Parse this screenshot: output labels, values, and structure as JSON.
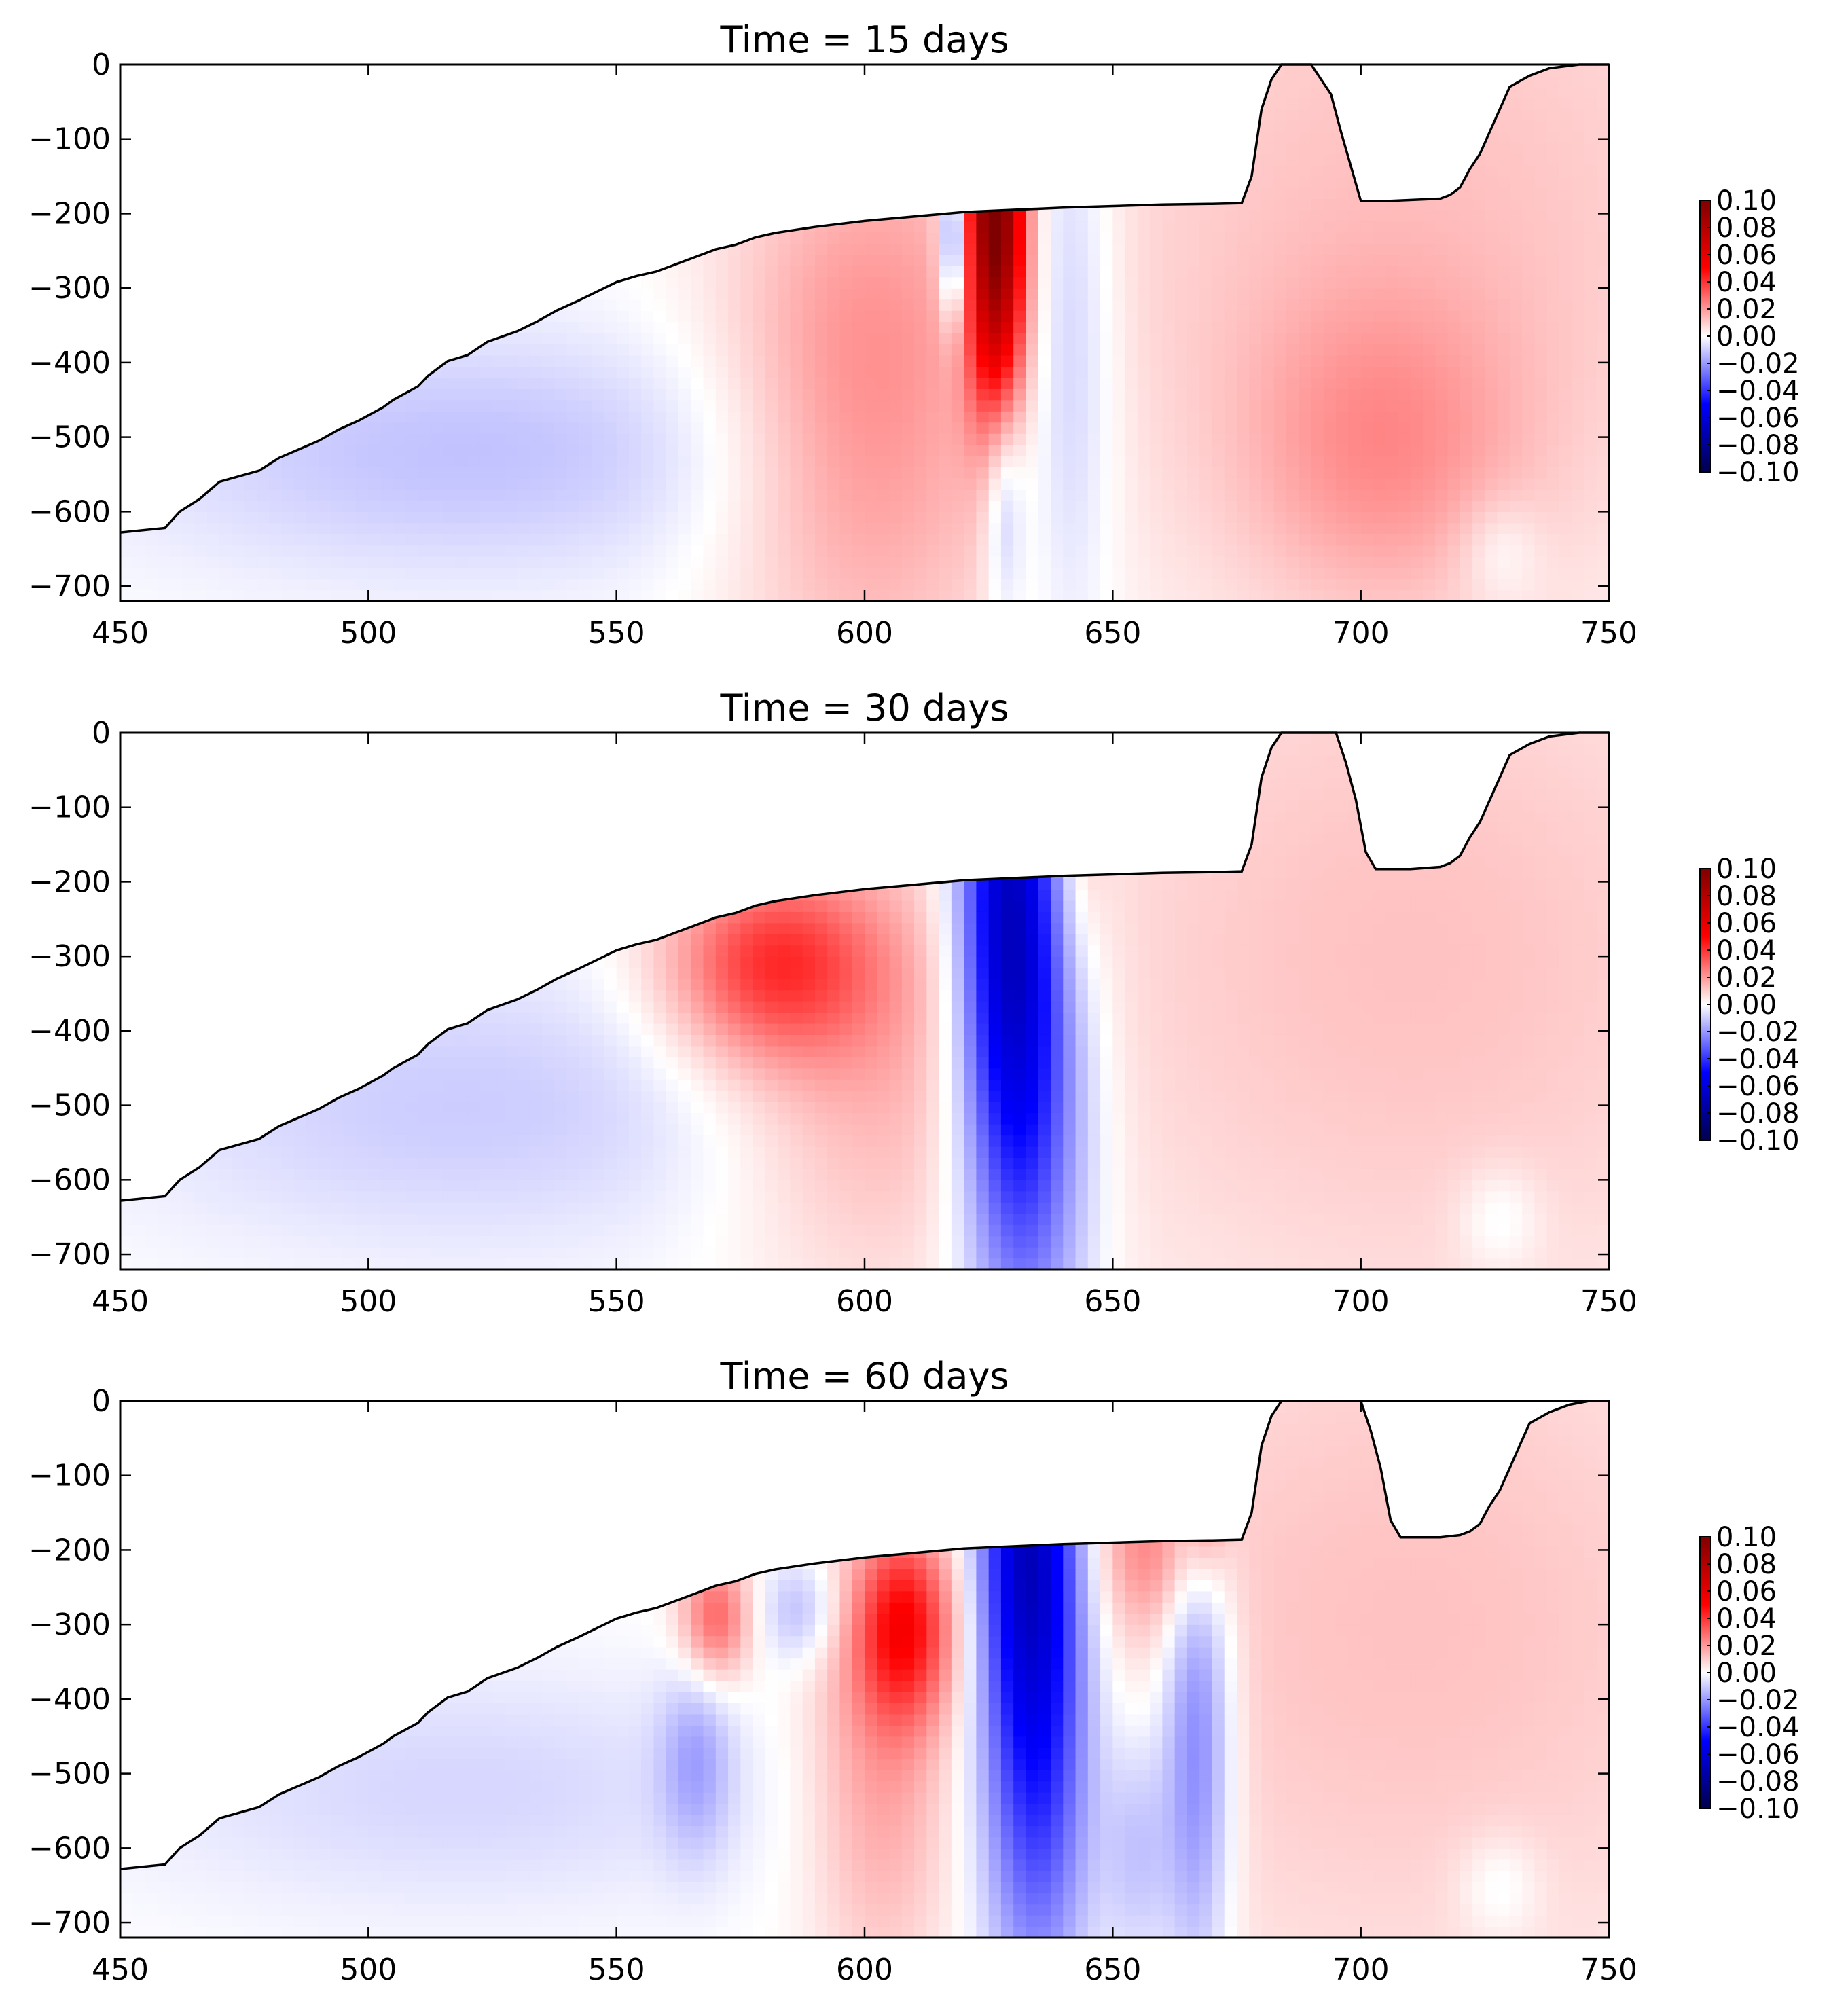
{
  "chart_data": [
    {
      "type": "heatmap",
      "title": "Time = 15 days",
      "xlabel": "",
      "ylabel": "",
      "xlim": [
        450,
        750
      ],
      "ylim": [
        -720,
        0
      ],
      "x_ticks": [
        "450",
        "500",
        "550",
        "600",
        "650",
        "700",
        "750"
      ],
      "y_ticks": [
        "0",
        "−100",
        "−200",
        "−300",
        "−400",
        "−500",
        "−600",
        "−700"
      ],
      "colorbar": {
        "colormap": "seismic",
        "range": [
          -0.1,
          0.1
        ],
        "ticks": [
          "0.10",
          "0.08",
          "0.06",
          "0.04",
          "0.02",
          "0.00",
          "−0.02",
          "−0.04",
          "−0.06",
          "−0.08",
          "−0.10"
        ]
      },
      "boundary": [
        [
          450,
          -628
        ],
        [
          459,
          -622
        ],
        [
          462,
          -600
        ],
        [
          466,
          -583
        ],
        [
          470,
          -560
        ],
        [
          478,
          -545
        ],
        [
          482,
          -528
        ],
        [
          490,
          -505
        ],
        [
          494,
          -490
        ],
        [
          498,
          -478
        ],
        [
          503,
          -460
        ],
        [
          505,
          -450
        ],
        [
          510,
          -432
        ],
        [
          512,
          -418
        ],
        [
          516,
          -398
        ],
        [
          520,
          -390
        ],
        [
          524,
          -372
        ],
        [
          530,
          -358
        ],
        [
          534,
          -345
        ],
        [
          538,
          -330
        ],
        [
          542,
          -318
        ],
        [
          546,
          -305
        ],
        [
          550,
          -292
        ],
        [
          554,
          -284
        ],
        [
          558,
          -278
        ],
        [
          562,
          -268
        ],
        [
          566,
          -258
        ],
        [
          570,
          -248
        ],
        [
          574,
          -242
        ],
        [
          578,
          -232
        ],
        [
          582,
          -226
        ],
        [
          590,
          -218
        ],
        [
          600,
          -210
        ],
        [
          620,
          -198
        ],
        [
          640,
          -192
        ],
        [
          660,
          -188
        ],
        [
          670,
          -187
        ],
        [
          676,
          -186
        ],
        [
          678,
          -150
        ],
        [
          680,
          -60
        ],
        [
          682,
          -20
        ],
        [
          684,
          0
        ],
        [
          690,
          0
        ],
        [
          694,
          -40
        ],
        [
          696,
          -90
        ],
        [
          700,
          -183
        ],
        [
          706,
          -183
        ],
        [
          716,
          -180
        ],
        [
          718,
          -175
        ],
        [
          720,
          -165
        ],
        [
          722,
          -140
        ],
        [
          724,
          -120
        ],
        [
          728,
          -60
        ],
        [
          730,
          -30
        ],
        [
          734,
          -15
        ],
        [
          738,
          -5
        ],
        [
          744,
          0
        ],
        [
          750,
          0
        ]
      ],
      "blobs": [
        {
          "x": 626,
          "y": -60,
          "sx": 4,
          "sy": 180,
          "v": 0.08
        },
        {
          "x": 627,
          "y": -300,
          "sx": 4,
          "sy": 150,
          "v": 0.05
        },
        {
          "x": 628,
          "y": -560,
          "sx": 3,
          "sy": 120,
          "v": -0.02
        },
        {
          "x": 618,
          "y": -230,
          "sx": 2,
          "sy": 80,
          "v": -0.04
        },
        {
          "x": 641,
          "y": -350,
          "sx": 7,
          "sy": 300,
          "v": -0.015
        },
        {
          "x": 600,
          "y": -450,
          "sx": 20,
          "sy": 260,
          "v": 0.022
        },
        {
          "x": 704,
          "y": -520,
          "sx": 20,
          "sy": 150,
          "v": 0.015
        },
        {
          "x": 710,
          "y": -200,
          "sx": 60,
          "sy": 400,
          "v": 0.012
        },
        {
          "x": 520,
          "y": -520,
          "sx": 50,
          "sy": 120,
          "v": -0.012
        },
        {
          "x": 728,
          "y": -650,
          "sx": 6,
          "sy": 50,
          "v": -0.008
        }
      ]
    },
    {
      "type": "heatmap",
      "title": "Time = 30 days",
      "xlabel": "",
      "ylabel": "",
      "xlim": [
        450,
        750
      ],
      "ylim": [
        -720,
        0
      ],
      "x_ticks": [
        "450",
        "500",
        "550",
        "600",
        "650",
        "700",
        "750"
      ],
      "y_ticks": [
        "0",
        "−100",
        "−200",
        "−300",
        "−400",
        "−500",
        "−600",
        "−700"
      ],
      "colorbar": {
        "colormap": "seismic",
        "range": [
          -0.1,
          0.1
        ],
        "ticks": [
          "0.10",
          "0.08",
          "0.06",
          "0.04",
          "0.02",
          "0.00",
          "−0.02",
          "−0.04",
          "−0.06",
          "−0.08",
          "−0.10"
        ]
      },
      "boundary": [
        [
          450,
          -628
        ],
        [
          459,
          -622
        ],
        [
          462,
          -600
        ],
        [
          466,
          -583
        ],
        [
          470,
          -560
        ],
        [
          478,
          -545
        ],
        [
          482,
          -528
        ],
        [
          490,
          -505
        ],
        [
          494,
          -490
        ],
        [
          498,
          -478
        ],
        [
          503,
          -460
        ],
        [
          505,
          -450
        ],
        [
          510,
          -432
        ],
        [
          512,
          -418
        ],
        [
          516,
          -398
        ],
        [
          520,
          -390
        ],
        [
          524,
          -372
        ],
        [
          530,
          -358
        ],
        [
          534,
          -345
        ],
        [
          538,
          -330
        ],
        [
          542,
          -318
        ],
        [
          546,
          -305
        ],
        [
          550,
          -292
        ],
        [
          554,
          -284
        ],
        [
          558,
          -278
        ],
        [
          562,
          -268
        ],
        [
          566,
          -258
        ],
        [
          570,
          -248
        ],
        [
          574,
          -242
        ],
        [
          578,
          -232
        ],
        [
          582,
          -226
        ],
        [
          590,
          -218
        ],
        [
          600,
          -210
        ],
        [
          620,
          -198
        ],
        [
          640,
          -192
        ],
        [
          660,
          -188
        ],
        [
          670,
          -187
        ],
        [
          676,
          -186
        ],
        [
          678,
          -150
        ],
        [
          680,
          -60
        ],
        [
          682,
          -20
        ],
        [
          684,
          0
        ],
        [
          695,
          0
        ],
        [
          697,
          -40
        ],
        [
          699,
          -90
        ],
        [
          701,
          -160
        ],
        [
          703,
          -183
        ],
        [
          710,
          -183
        ],
        [
          716,
          -180
        ],
        [
          718,
          -175
        ],
        [
          720,
          -165
        ],
        [
          722,
          -140
        ],
        [
          724,
          -120
        ],
        [
          728,
          -60
        ],
        [
          730,
          -30
        ],
        [
          734,
          -15
        ],
        [
          738,
          -5
        ],
        [
          744,
          0
        ],
        [
          750,
          0
        ]
      ],
      "blobs": [
        {
          "x": 629,
          "y": -200,
          "sx": 7,
          "sy": 250,
          "v": -0.06
        },
        {
          "x": 633,
          "y": -520,
          "sx": 9,
          "sy": 250,
          "v": -0.035
        },
        {
          "x": 643,
          "y": -150,
          "sx": 4,
          "sy": 120,
          "v": 0.01
        },
        {
          "x": 581,
          "y": -310,
          "sx": 15,
          "sy": 90,
          "v": 0.035
        },
        {
          "x": 600,
          "y": -450,
          "sx": 20,
          "sy": 200,
          "v": 0.015
        },
        {
          "x": 710,
          "y": -300,
          "sx": 60,
          "sy": 400,
          "v": 0.012
        },
        {
          "x": 520,
          "y": -500,
          "sx": 50,
          "sy": 140,
          "v": -0.01
        },
        {
          "x": 728,
          "y": -650,
          "sx": 6,
          "sy": 50,
          "v": -0.008
        }
      ]
    },
    {
      "type": "heatmap",
      "title": "Time = 60 days",
      "xlabel": "",
      "ylabel": "",
      "xlim": [
        450,
        750
      ],
      "ylim": [
        -720,
        0
      ],
      "x_ticks": [
        "450",
        "500",
        "550",
        "600",
        "650",
        "700",
        "750"
      ],
      "y_ticks": [
        "0",
        "−100",
        "−200",
        "−300",
        "−400",
        "−500",
        "−600",
        "−700"
      ],
      "colorbar": {
        "colormap": "seismic",
        "range": [
          -0.1,
          0.1
        ],
        "ticks": [
          "0.10",
          "0.08",
          "0.06",
          "0.04",
          "0.02",
          "0.00",
          "−0.02",
          "−0.04",
          "−0.06",
          "−0.08",
          "−0.10"
        ]
      },
      "boundary": [
        [
          450,
          -628
        ],
        [
          459,
          -622
        ],
        [
          462,
          -600
        ],
        [
          466,
          -583
        ],
        [
          470,
          -560
        ],
        [
          478,
          -545
        ],
        [
          482,
          -528
        ],
        [
          490,
          -505
        ],
        [
          494,
          -490
        ],
        [
          498,
          -478
        ],
        [
          503,
          -460
        ],
        [
          505,
          -450
        ],
        [
          510,
          -432
        ],
        [
          512,
          -418
        ],
        [
          516,
          -398
        ],
        [
          520,
          -390
        ],
        [
          524,
          -372
        ],
        [
          530,
          -358
        ],
        [
          534,
          -345
        ],
        [
          538,
          -330
        ],
        [
          542,
          -318
        ],
        [
          546,
          -305
        ],
        [
          550,
          -292
        ],
        [
          554,
          -284
        ],
        [
          558,
          -278
        ],
        [
          562,
          -268
        ],
        [
          566,
          -258
        ],
        [
          570,
          -248
        ],
        [
          574,
          -242
        ],
        [
          578,
          -232
        ],
        [
          582,
          -226
        ],
        [
          590,
          -218
        ],
        [
          600,
          -210
        ],
        [
          620,
          -198
        ],
        [
          640,
          -192
        ],
        [
          660,
          -188
        ],
        [
          670,
          -187
        ],
        [
          676,
          -186
        ],
        [
          678,
          -150
        ],
        [
          680,
          -60
        ],
        [
          682,
          -20
        ],
        [
          684,
          0
        ],
        [
          700,
          0
        ],
        [
          702,
          -40
        ],
        [
          704,
          -90
        ],
        [
          706,
          -160
        ],
        [
          708,
          -183
        ],
        [
          716,
          -183
        ],
        [
          720,
          -180
        ],
        [
          722,
          -175
        ],
        [
          724,
          -165
        ],
        [
          726,
          -140
        ],
        [
          728,
          -120
        ],
        [
          732,
          -60
        ],
        [
          734,
          -30
        ],
        [
          738,
          -15
        ],
        [
          742,
          -5
        ],
        [
          746,
          0
        ],
        [
          750,
          0
        ]
      ],
      "blobs": [
        {
          "x": 633,
          "y": -150,
          "sx": 7,
          "sy": 200,
          "v": -0.06
        },
        {
          "x": 635,
          "y": -500,
          "sx": 8,
          "sy": 230,
          "v": -0.04
        },
        {
          "x": 667,
          "y": -450,
          "sx": 5,
          "sy": 230,
          "v": -0.03
        },
        {
          "x": 655,
          "y": -600,
          "sx": 5,
          "sy": 120,
          "v": -0.015
        },
        {
          "x": 660,
          "y": -30,
          "sx": 6,
          "sy": 60,
          "v": -0.02
        },
        {
          "x": 669,
          "y": -40,
          "sx": 3,
          "sy": 100,
          "v": 0.035
        },
        {
          "x": 658,
          "y": -190,
          "sx": 8,
          "sy": 80,
          "v": 0.018
        },
        {
          "x": 608,
          "y": -300,
          "sx": 7,
          "sy": 90,
          "v": 0.04
        },
        {
          "x": 603,
          "y": -480,
          "sx": 10,
          "sy": 200,
          "v": 0.018
        },
        {
          "x": 570,
          "y": -290,
          "sx": 5,
          "sy": 60,
          "v": 0.03
        },
        {
          "x": 587,
          "y": -280,
          "sx": 6,
          "sy": 50,
          "v": -0.015
        },
        {
          "x": 566,
          "y": -480,
          "sx": 5,
          "sy": 90,
          "v": -0.015
        },
        {
          "x": 710,
          "y": -300,
          "sx": 60,
          "sy": 400,
          "v": 0.012
        },
        {
          "x": 520,
          "y": -520,
          "sx": 50,
          "sy": 120,
          "v": -0.008
        },
        {
          "x": 728,
          "y": -650,
          "sx": 6,
          "sy": 50,
          "v": -0.008
        }
      ]
    }
  ]
}
